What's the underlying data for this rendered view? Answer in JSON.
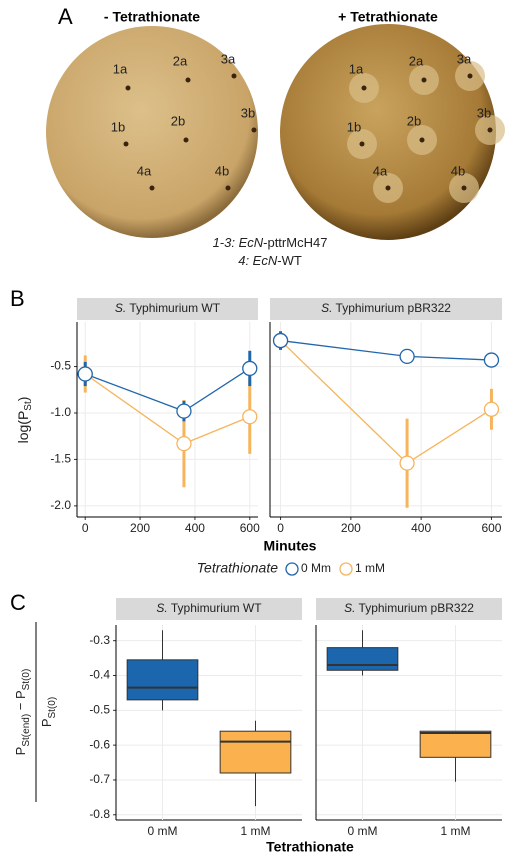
{
  "panel_a": {
    "label": "A",
    "plates": [
      {
        "title": "- Tetrathionate",
        "wells": [
          "1a",
          "2a",
          "3a",
          "1b",
          "2b",
          "3b",
          "4a",
          "4b"
        ]
      },
      {
        "title": "+ Tetrathionate",
        "wells": [
          "1a",
          "2a",
          "3a",
          "1b",
          "2b",
          "3b",
          "4a",
          "4b"
        ]
      }
    ],
    "caption": [
      [
        "1-3: EcN",
        "-pttrMcH47"
      ],
      [
        "4: EcN",
        "-WT"
      ]
    ]
  },
  "chart_data": [
    {
      "type": "line",
      "panel_label": "B",
      "x": [
        0,
        360,
        600
      ],
      "xlim": [
        -30,
        630
      ],
      "xticks": [
        0,
        200,
        400,
        600
      ],
      "ylim": [
        -2.12,
        -0.02
      ],
      "yticks": [
        {
          "value": -2,
          "label": "-2.0"
        },
        -1.5,
        {
          "value": -1,
          "label": "-1.0"
        },
        -0.5
      ],
      "grid": true,
      "x_label": "Minutes",
      "y_label": [
        "log(P",
        "St",
        ")"
      ],
      "legend_title": "Tetrathionate",
      "legend": [
        {
          "name": "0 Mm",
          "color": "#2166ac"
        },
        {
          "name": "1 mM",
          "color": "#f6b45c"
        }
      ],
      "facets": [
        {
          "title": [
            "S.",
            " Typhimurium WT"
          ],
          "series": [
            {
              "values": [
                -0.58,
                -0.98,
                -0.52
              ],
              "errors": [
                0.13,
                0.11,
                0.19
              ]
            },
            {
              "values": [
                -0.58,
                -1.33,
                -1.04
              ],
              "errors": [
                0.2,
                0.47,
                0.4
              ]
            }
          ]
        },
        {
          "title": [
            "S.",
            " Typhimurium pBR322"
          ],
          "series": [
            {
              "values": [
                -0.22,
                -0.39,
                -0.43
              ],
              "errors": [
                0.1,
                0.05,
                0.07
              ]
            },
            {
              "values": [
                -0.22,
                -1.54,
                -0.96
              ],
              "errors": [
                0.1,
                0.48,
                0.22
              ]
            }
          ]
        }
      ]
    },
    {
      "type": "box",
      "panel_label": "C",
      "categories": [
        "0 mM",
        "1 mM"
      ],
      "colors": [
        "#1c66ae",
        "#fbb24e"
      ],
      "ylim": [
        -0.815,
        -0.255
      ],
      "yticks": [
        -0.8,
        -0.7,
        -0.6,
        -0.5,
        -0.4,
        -0.3
      ],
      "grid": true,
      "x_label": "Tetrathionate",
      "y_label": {
        "numerator": [
          "P",
          "St(end)",
          " − P",
          "St(0)"
        ],
        "denominator": [
          "P",
          "St(0)"
        ]
      },
      "facets": [
        {
          "title": [
            "S.",
            " Typhimurium WT"
          ],
          "boxes": [
            {
              "whislo": -0.5,
              "q1": -0.47,
              "med": -0.435,
              "q3": -0.355,
              "whishi": -0.27
            },
            {
              "whislo": -0.775,
              "q1": -0.68,
              "med": -0.59,
              "q3": -0.56,
              "whishi": -0.53
            }
          ]
        },
        {
          "title": [
            "S.",
            " Typhimurium pBR322"
          ],
          "boxes": [
            {
              "whislo": -0.4,
              "q1": -0.385,
              "med": -0.37,
              "q3": -0.32,
              "whishi": -0.27
            },
            {
              "whislo": -0.705,
              "q1": -0.635,
              "med": -0.565,
              "q3": -0.56,
              "whishi": -0.56
            }
          ]
        }
      ]
    }
  ]
}
